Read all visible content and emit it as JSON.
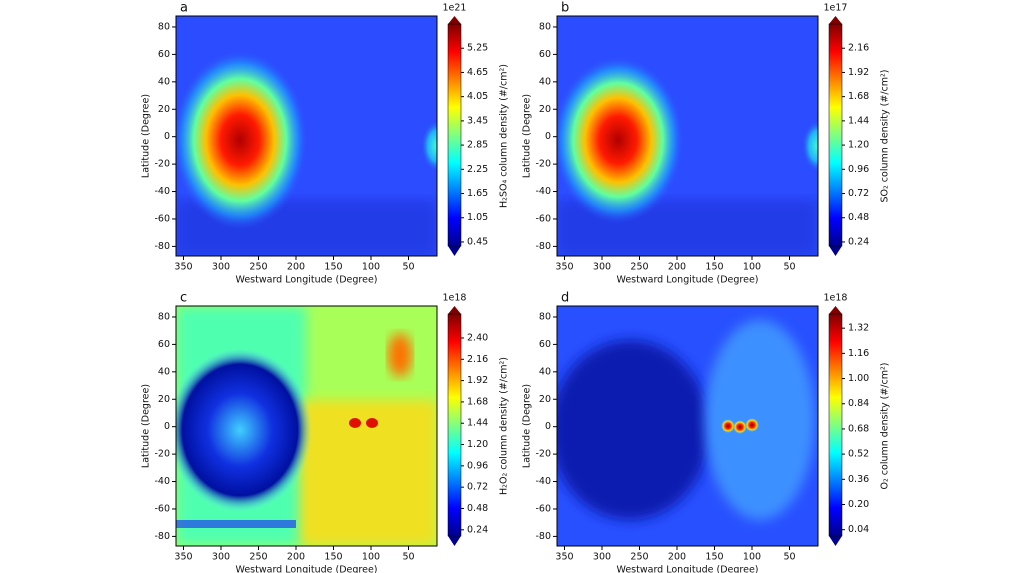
{
  "chart_data": [
    {
      "type": "heatmap",
      "panel_label": "a",
      "xlabel": "Westward Longitude (Degree)",
      "ylabel": "Latitude (Degree)",
      "xlim": [
        360,
        12
      ],
      "xticks": [
        350,
        300,
        250,
        200,
        150,
        100,
        50
      ],
      "ylim": [
        -87,
        88
      ],
      "yticks": [
        -80,
        -60,
        -40,
        -20,
        0,
        20,
        40,
        60,
        80
      ],
      "colorbar": {
        "label": "H₂SO₄ column density (#/cm²)",
        "exponent": "1e21",
        "lim": [
          0.35,
          5.85
        ],
        "ticks": [
          0.45,
          1.05,
          1.65,
          2.25,
          2.85,
          3.45,
          4.05,
          4.65,
          5.25
        ]
      }
    },
    {
      "type": "heatmap",
      "panel_label": "b",
      "xlabel": "Westward Longitude (Degree)",
      "ylabel": "Latitude (Degree)",
      "xlim": [
        360,
        12
      ],
      "xticks": [
        350,
        300,
        250,
        200,
        150,
        100,
        50
      ],
      "ylim": [
        -87,
        88
      ],
      "yticks": [
        -80,
        -60,
        -40,
        -20,
        0,
        20,
        40,
        60,
        80
      ],
      "colorbar": {
        "label": "SO₂ column density (#/cm²)",
        "exponent": "1e17",
        "lim": [
          0.2,
          2.4
        ],
        "ticks": [
          0.24,
          0.48,
          0.72,
          0.96,
          {
            "value": 1.2,
            "label": "1.20"
          },
          1.44,
          1.68,
          1.92,
          2.16
        ]
      }
    },
    {
      "type": "heatmap",
      "panel_label": "c",
      "xlabel": "Westward Longitude (Degree)",
      "ylabel": "Latitude (Degree)",
      "xlim": [
        360,
        12
      ],
      "xticks": [
        350,
        300,
        250,
        200,
        150,
        100,
        50
      ],
      "ylim": [
        -87,
        88
      ],
      "yticks": [
        -80,
        -60,
        -40,
        -20,
        0,
        20,
        40,
        60,
        80
      ],
      "colorbar": {
        "label": "H₂O₂ column density (#/cm²)",
        "exponent": "1e18",
        "lim": [
          0.17,
          2.67
        ],
        "ticks": [
          0.24,
          0.48,
          0.72,
          0.96,
          {
            "value": 1.2,
            "label": "1.20"
          },
          1.44,
          1.68,
          1.92,
          2.16,
          {
            "value": 2.4,
            "label": "2.40"
          }
        ]
      }
    },
    {
      "type": "heatmap",
      "panel_label": "d",
      "xlabel": "Westward Longitude (Degree)",
      "ylabel": "Latitude (Degree)",
      "xlim": [
        360,
        12
      ],
      "xticks": [
        350,
        300,
        250,
        200,
        150,
        100,
        50
      ],
      "ylim": [
        -87,
        88
      ],
      "yticks": [
        -80,
        -60,
        -40,
        -20,
        0,
        20,
        40,
        60,
        80
      ],
      "colorbar": {
        "label": "O₂ column density (#/cm²)",
        "exponent": "1e18",
        "lim": [
          0,
          1.41
        ],
        "ticks": [
          0.04,
          {
            "value": 0.2,
            "label": "0.20"
          },
          0.36,
          0.52,
          0.68,
          0.84,
          {
            "value": 1,
            "label": "1.00"
          },
          1.16,
          1.32
        ]
      }
    }
  ]
}
